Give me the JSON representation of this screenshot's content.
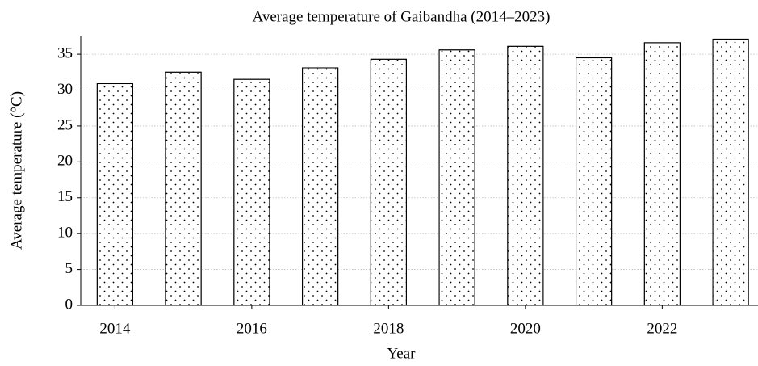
{
  "chart_data": {
    "type": "bar",
    "title": "Average temperature of Gaibandha (2014–2023)",
    "xlabel": "Year",
    "ylabel": "Average temperature (°C)",
    "x": [
      2014,
      2015,
      2016,
      2017,
      2018,
      2019,
      2020,
      2021,
      2022,
      2023
    ],
    "values": [
      30.9,
      32.5,
      31.5,
      33.1,
      34.3,
      35.6,
      36.1,
      34.5,
      36.6,
      37.1
    ],
    "color": "#ffffff",
    "edgecolor": "#000000",
    "hatch": ".",
    "xlim": [
      2013.5,
      2023.4
    ],
    "xticks": [
      2014,
      2016,
      2018,
      2020,
      2022
    ],
    "ylim": [
      0,
      37.6
    ],
    "yticks": [
      0,
      5,
      10,
      15,
      20,
      25,
      30,
      35
    ],
    "grid": true
  }
}
